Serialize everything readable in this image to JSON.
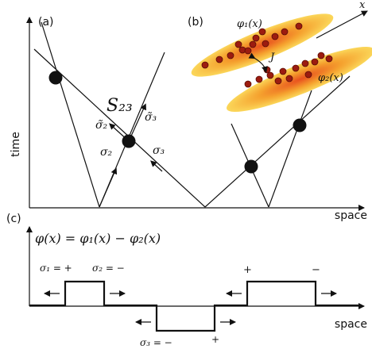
{
  "panel_a": {
    "label": "(a)",
    "y_axis": "time",
    "x_axis": "space",
    "vertex": "S₂₃",
    "rays": {
      "s2_out": "σ̃₂",
      "s3_out": "σ̃₃",
      "s2_in": "σ₂",
      "s3_in": "σ₃"
    }
  },
  "panel_b": {
    "label": "(b)",
    "axis": "x",
    "field_1": "φ₁(x)",
    "field_2": "φ₂(x)",
    "coupling": "J"
  },
  "panel_c": {
    "label": "(c)",
    "formula": "φ(x) = φ₁(x) − φ₂(x)",
    "x_axis": "space",
    "signs": {
      "s1": "σ₁ = +",
      "s2": "σ₂ = −",
      "s3": "σ₃ = −",
      "plus_low": "+",
      "plus_high": "+",
      "minus_high": "−"
    }
  }
}
